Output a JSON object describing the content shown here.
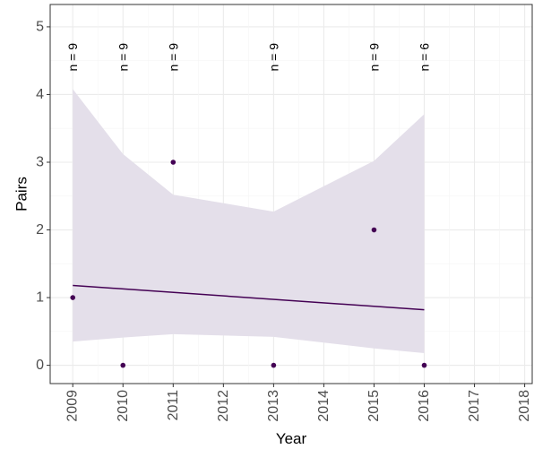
{
  "chart_data": {
    "type": "scatter",
    "xlabel": "Year",
    "ylabel": "Pairs",
    "xlim": [
      2008.55,
      2018.15
    ],
    "ylim": [
      -0.27,
      5.33
    ],
    "x_ticks": [
      "2009",
      "2010",
      "2011",
      "2012",
      "2013",
      "2014",
      "2015",
      "2016",
      "2017",
      "2018"
    ],
    "y_ticks": [
      "0",
      "1",
      "2",
      "3",
      "4",
      "5"
    ],
    "points": [
      {
        "x": 2009,
        "y": 1
      },
      {
        "x": 2010,
        "y": 0
      },
      {
        "x": 2011,
        "y": 3
      },
      {
        "x": 2013,
        "y": 0
      },
      {
        "x": 2015,
        "y": 2
      },
      {
        "x": 2016,
        "y": 0
      }
    ],
    "trend_line": {
      "x": [
        2009,
        2016
      ],
      "y": [
        1.18,
        0.82
      ]
    },
    "confidence_band": {
      "x": [
        2009,
        2010,
        2011,
        2013,
        2015,
        2016
      ],
      "upper": [
        4.08,
        3.12,
        2.52,
        2.27,
        3.02,
        3.71
      ],
      "lower": [
        0.35,
        0.41,
        0.46,
        0.42,
        0.25,
        0.18
      ]
    },
    "annotations": [
      {
        "x": 2009,
        "text": "n = 9"
      },
      {
        "x": 2010,
        "text": "n = 9"
      },
      {
        "x": 2011,
        "text": "n = 9"
      },
      {
        "x": 2013,
        "text": "n = 9"
      },
      {
        "x": 2015,
        "text": "n = 9"
      },
      {
        "x": 2016,
        "text": "n = 6"
      }
    ],
    "grid": true,
    "colors": {
      "point": "#440154",
      "line": "#440154",
      "band": "#e4dfea",
      "grid": "#ebebeb",
      "panel_border": "#333333"
    }
  }
}
